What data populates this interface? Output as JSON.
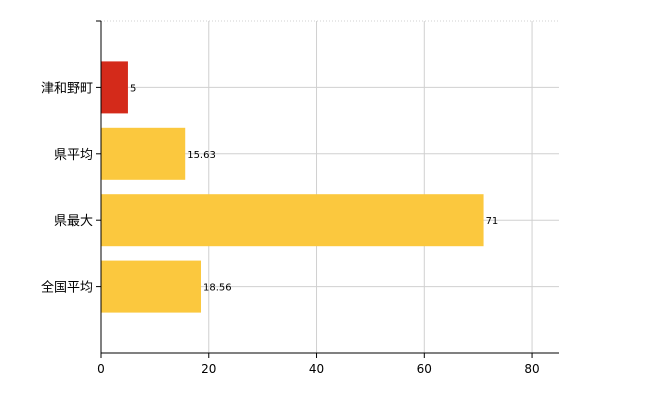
{
  "chart_data": {
    "type": "bar",
    "orientation": "horizontal",
    "categories": [
      "津和野町",
      "県平均",
      "県最大",
      "全国平均"
    ],
    "values": [
      5,
      15.63,
      71,
      18.56
    ],
    "value_labels": [
      "5",
      "15.63",
      "71",
      "18.56"
    ],
    "colors": [
      "#d42a1a",
      "#fbc83e",
      "#fbc83e",
      "#fbc83e"
    ],
    "xlim": [
      0,
      85
    ],
    "xticks": [
      0,
      20,
      40,
      60,
      80
    ],
    "xtick_labels": [
      "0",
      "20",
      "40",
      "60",
      "80"
    ],
    "grid": true,
    "legend": "none",
    "title": "",
    "xlabel": "",
    "ylabel": ""
  },
  "colors": {
    "grid": "#d0d0d0",
    "axis": "#000000"
  }
}
